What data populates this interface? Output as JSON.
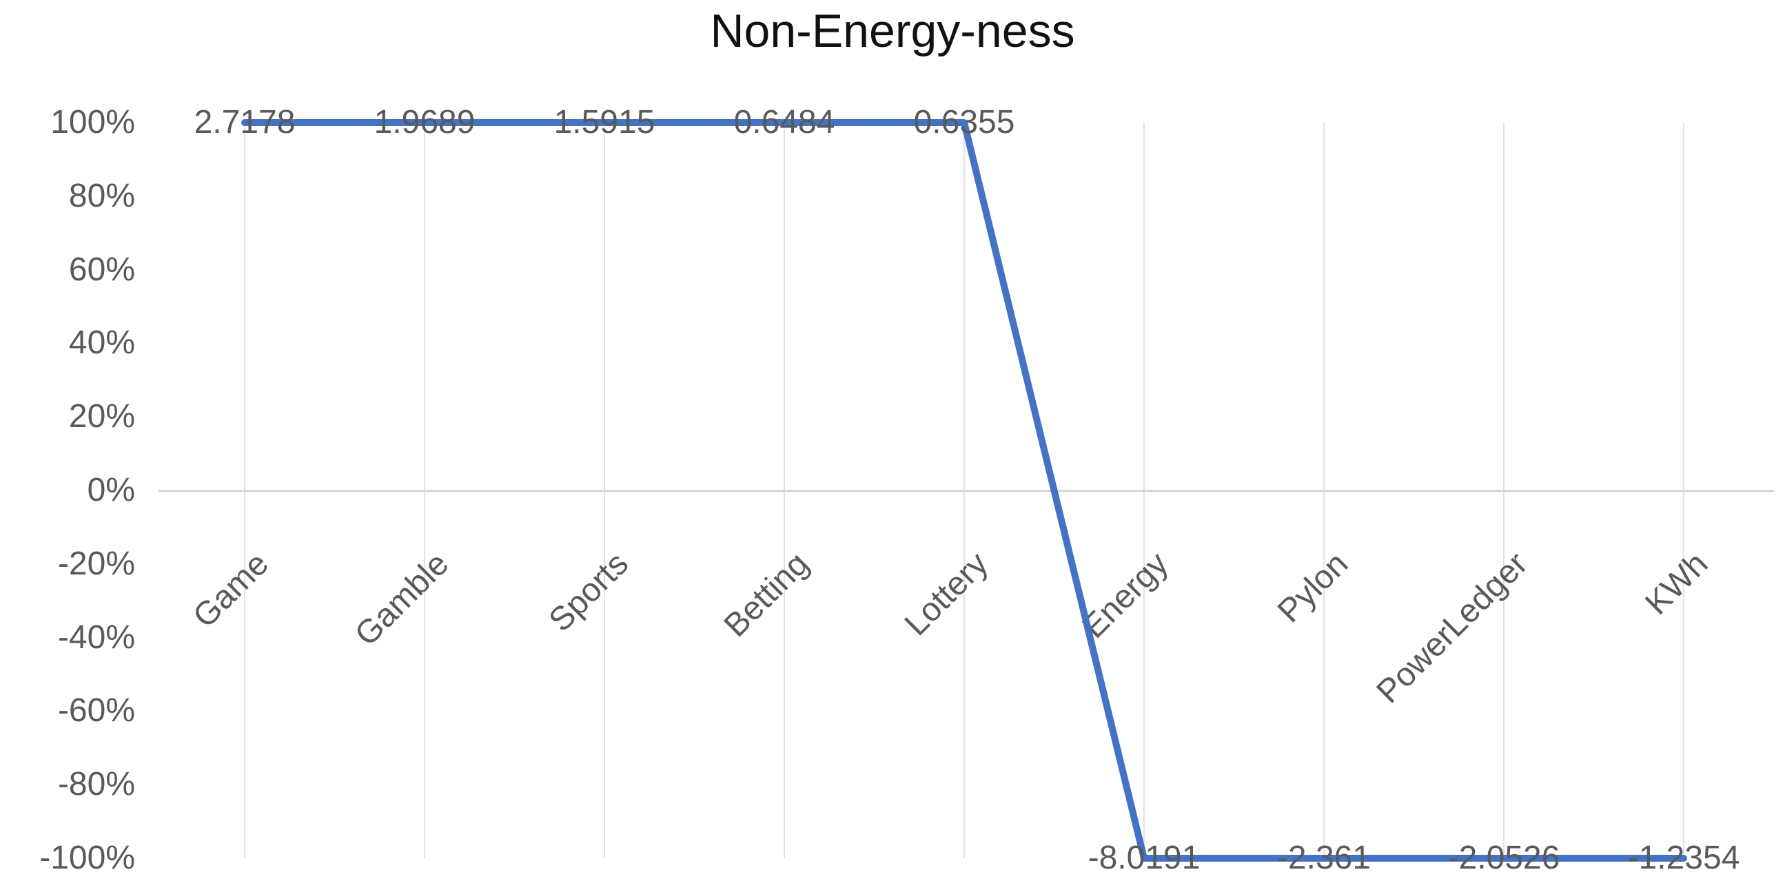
{
  "chart_data": {
    "type": "line",
    "title": "Non-Energy-ness",
    "categories": [
      "Game",
      "Gamble",
      "Sports",
      "Betting",
      "Lottery",
      "Energy",
      "Pylon",
      "PowerLedger",
      "KWh"
    ],
    "series": [
      {
        "name": "Non-Energy-ness",
        "data_labels": [
          "2.7178",
          "1.9689",
          "1.5915",
          "0.6484",
          "0.6355",
          "-8.0191",
          "-2.361",
          "-2.0526",
          "-1.2354"
        ],
        "raw_values": [
          2.7178,
          1.9689,
          1.5915,
          0.6484,
          0.6355,
          -8.0191,
          -2.361,
          -2.0526,
          -1.2354
        ],
        "plotted_values_pct": [
          100,
          100,
          100,
          100,
          100,
          -100,
          -100,
          -100,
          -100
        ]
      }
    ],
    "y_ticks": [
      "100%",
      "80%",
      "60%",
      "40%",
      "20%",
      "0%",
      "-20%",
      "-40%",
      "-60%",
      "-80%",
      "-100%"
    ],
    "ylim": [
      -100,
      100
    ],
    "xlabel": "",
    "ylabel": "",
    "legend": "none",
    "grid": "vertical-only",
    "colors": {
      "line": "#4472C4",
      "labels": "#595959",
      "title": "#111111",
      "gridline": "#e1e1e1",
      "axis_line": "#d5d5d5",
      "background": "#ffffff"
    }
  }
}
